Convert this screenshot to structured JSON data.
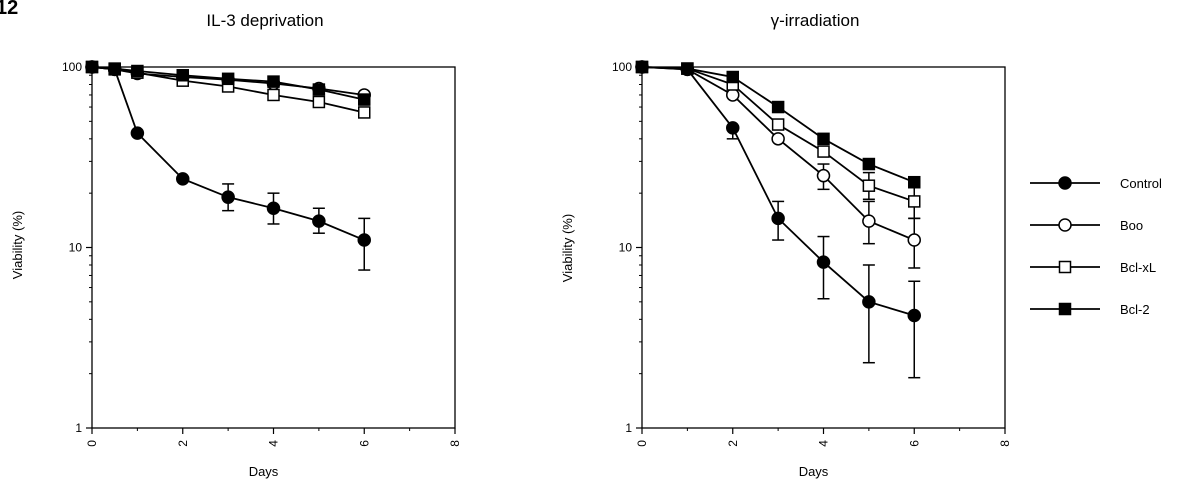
{
  "figure": {
    "panel_label": "12"
  },
  "legend": {
    "entries": [
      {
        "label": "Control",
        "marker": "filled-circle"
      },
      {
        "label": "Boo",
        "marker": "open-circle"
      },
      {
        "label": "Bcl-xL",
        "marker": "open-square"
      },
      {
        "label": "Bcl-2",
        "marker": "filled-square"
      }
    ]
  },
  "chart_data": [
    {
      "type": "line",
      "title": "IL-3 deprivation",
      "xlabel": "Days",
      "ylabel": "Viability (%)",
      "xlim": [
        0,
        8
      ],
      "ylim": [
        1,
        100
      ],
      "yscale": "log",
      "xticks": [
        "0",
        "2",
        "4",
        "6",
        "8"
      ],
      "yticks": [
        "1",
        "10",
        "100"
      ],
      "series": [
        {
          "name": "Control",
          "marker": "filled-circle",
          "x": [
            0,
            0.5,
            1,
            2,
            3,
            4,
            5,
            6
          ],
          "y": [
            100,
            97,
            43,
            24,
            19,
            16.5,
            14,
            11
          ],
          "err_hi": [
            null,
            null,
            null,
            null,
            22.5,
            20,
            16.5,
            14.5
          ],
          "err_lo": [
            null,
            null,
            null,
            null,
            16,
            13.5,
            12,
            7.5
          ]
        },
        {
          "name": "Boo",
          "marker": "open-circle",
          "x": [
            0,
            0.5,
            1,
            2,
            3,
            4,
            5,
            6
          ],
          "y": [
            100,
            97,
            92,
            88,
            85,
            81,
            76,
            70
          ],
          "err_hi": [
            null,
            null,
            null,
            null,
            null,
            null,
            null,
            null
          ],
          "err_lo": [
            null,
            null,
            null,
            null,
            null,
            null,
            null,
            null
          ]
        },
        {
          "name": "Bcl-xL",
          "marker": "open-square",
          "x": [
            0,
            0.5,
            1,
            2,
            3,
            4,
            5,
            6
          ],
          "y": [
            100,
            97,
            93,
            84,
            78,
            70,
            64,
            56
          ],
          "err_hi": [
            null,
            null,
            null,
            null,
            null,
            null,
            null,
            null
          ],
          "err_lo": [
            null,
            null,
            null,
            null,
            null,
            null,
            null,
            null
          ]
        },
        {
          "name": "Bcl-2",
          "marker": "filled-square",
          "x": [
            0,
            0.5,
            1,
            2,
            3,
            4,
            5,
            6
          ],
          "y": [
            100,
            98,
            95,
            90,
            86,
            83,
            75,
            66
          ],
          "err_hi": [
            null,
            null,
            null,
            null,
            null,
            null,
            null,
            null
          ],
          "err_lo": [
            null,
            null,
            null,
            null,
            null,
            null,
            null,
            null
          ]
        }
      ]
    },
    {
      "type": "line",
      "title": "γ-irradiation",
      "xlabel": "Days",
      "ylabel": "Viability (%)",
      "xlim": [
        0,
        8
      ],
      "ylim": [
        1,
        100
      ],
      "yscale": "log",
      "xticks": [
        "0",
        "2",
        "4",
        "6",
        "8"
      ],
      "yticks": [
        "1",
        "10",
        "100"
      ],
      "series": [
        {
          "name": "Control",
          "marker": "filled-circle",
          "x": [
            0,
            1,
            2,
            3,
            4,
            5,
            6
          ],
          "y": [
            100,
            97,
            46,
            14.5,
            8.3,
            5.0,
            4.2
          ],
          "err_hi": [
            null,
            null,
            null,
            18,
            11.5,
            8,
            6.5
          ],
          "err_lo": [
            null,
            null,
            40,
            11,
            5.2,
            2.3,
            1.9
          ]
        },
        {
          "name": "Boo",
          "marker": "open-circle",
          "x": [
            0,
            1,
            2,
            3,
            4,
            5,
            6
          ],
          "y": [
            100,
            97,
            70,
            40,
            25,
            14,
            11
          ],
          "err_hi": [
            null,
            null,
            null,
            null,
            29,
            18,
            14.5
          ],
          "err_lo": [
            null,
            null,
            null,
            null,
            21,
            10.5,
            7.7
          ]
        },
        {
          "name": "Bcl-xL",
          "marker": "open-square",
          "x": [
            0,
            1,
            2,
            3,
            4,
            5,
            6
          ],
          "y": [
            100,
            98,
            80,
            48,
            34,
            22,
            18
          ],
          "err_hi": [
            null,
            null,
            null,
            null,
            null,
            26,
            21.5
          ],
          "err_lo": [
            null,
            null,
            null,
            null,
            null,
            18.5,
            14.5
          ]
        },
        {
          "name": "Bcl-2",
          "marker": "filled-square",
          "x": [
            0,
            1,
            2,
            3,
            4,
            5,
            6
          ],
          "y": [
            100,
            98,
            88,
            60,
            40,
            29,
            23
          ],
          "err_hi": [
            null,
            null,
            null,
            null,
            null,
            null,
            null
          ],
          "err_lo": [
            null,
            null,
            null,
            null,
            null,
            null,
            null
          ]
        }
      ]
    }
  ]
}
